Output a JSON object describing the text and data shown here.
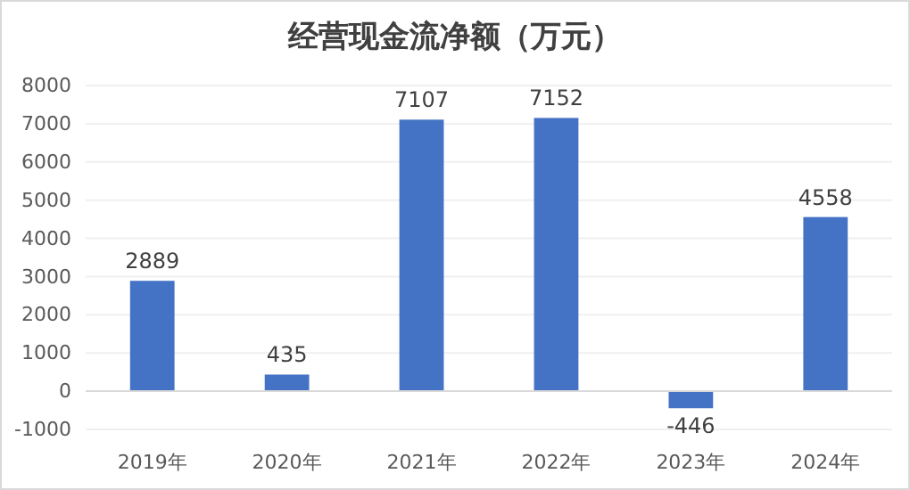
{
  "chart_data": {
    "type": "bar",
    "title": "经营现金流净额（万元）",
    "categories": [
      "2019年",
      "2020年",
      "2021年",
      "2022年",
      "2023年",
      "2024年"
    ],
    "values": [
      2889,
      435,
      7107,
      7152,
      -446,
      4558
    ],
    "color": "#4472c4",
    "ylim": [
      -1000,
      8000
    ],
    "yticks": [
      -1000,
      0,
      1000,
      2000,
      3000,
      4000,
      5000,
      6000,
      7000,
      8000
    ],
    "data_labels": true,
    "grid": "y"
  }
}
